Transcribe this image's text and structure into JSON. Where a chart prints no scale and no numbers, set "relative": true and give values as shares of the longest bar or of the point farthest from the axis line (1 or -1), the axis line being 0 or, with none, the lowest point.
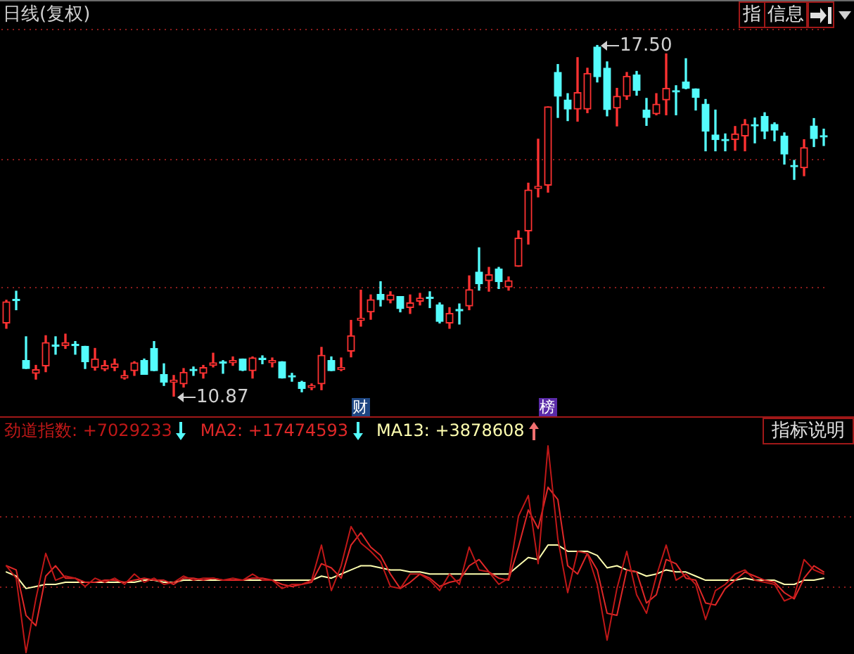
{
  "chart_data": [
    {
      "type": "candlestick",
      "title": "日线(复权)",
      "categories": [
        null,
        null,
        null,
        null,
        null,
        null,
        null,
        null,
        null,
        null,
        null,
        null,
        null,
        null,
        null,
        null,
        null,
        null,
        null,
        null,
        null,
        null,
        null,
        null,
        null,
        null,
        null,
        null,
        null,
        null,
        null,
        null,
        null,
        null,
        null,
        null,
        null,
        null,
        null,
        null,
        null,
        null,
        null,
        null,
        null,
        null,
        null,
        null,
        null,
        null,
        null,
        null,
        null,
        null,
        null,
        null,
        null,
        null,
        null,
        null,
        null,
        null,
        null,
        null,
        null,
        null,
        null,
        null,
        null,
        null,
        null,
        null,
        null,
        null,
        null,
        null,
        null,
        null,
        null,
        null,
        null,
        null,
        null,
        null
      ],
      "ohlc": [
        [
          12.26,
          12.69,
          12.16,
          12.66
        ],
        [
          12.7,
          12.86,
          12.51,
          12.68
        ],
        [
          11.55,
          12.0,
          11.4,
          11.4
        ],
        [
          11.31,
          11.46,
          11.2,
          11.38
        ],
        [
          11.45,
          12.02,
          11.34,
          11.89
        ],
        [
          11.83,
          12.0,
          11.67,
          11.82
        ],
        [
          11.83,
          12.05,
          11.78,
          11.89
        ],
        [
          11.84,
          11.91,
          11.67,
          11.83
        ],
        [
          11.82,
          11.82,
          11.4,
          11.53
        ],
        [
          11.42,
          11.78,
          11.37,
          11.58
        ],
        [
          11.39,
          11.55,
          11.36,
          11.46
        ],
        [
          11.42,
          11.58,
          11.36,
          11.49
        ],
        [
          11.22,
          11.36,
          11.2,
          11.27
        ],
        [
          11.36,
          11.53,
          11.27,
          11.51
        ],
        [
          11.55,
          11.58,
          11.29,
          11.29
        ],
        [
          11.78,
          11.91,
          11.36,
          11.36
        ],
        [
          11.29,
          11.49,
          11.08,
          11.14
        ],
        [
          11.14,
          11.27,
          10.87,
          11.18
        ],
        [
          11.11,
          11.4,
          11.05,
          11.33
        ],
        [
          11.37,
          11.43,
          11.27,
          11.36
        ],
        [
          11.31,
          11.46,
          11.22,
          11.42
        ],
        [
          11.46,
          11.69,
          11.43,
          11.51
        ],
        [
          11.51,
          11.55,
          11.31,
          11.5
        ],
        [
          11.51,
          11.62,
          11.46,
          11.55
        ],
        [
          11.58,
          11.58,
          11.36,
          11.37
        ],
        [
          11.36,
          11.62,
          11.22,
          11.6
        ],
        [
          11.58,
          11.64,
          11.49,
          11.57
        ],
        [
          11.51,
          11.6,
          11.43,
          11.55
        ],
        [
          11.53,
          11.53,
          11.22,
          11.22
        ],
        [
          11.25,
          11.31,
          11.16,
          11.24
        ],
        [
          11.14,
          11.16,
          10.96,
          11.02
        ],
        [
          11.04,
          11.11,
          11.0,
          11.08
        ],
        [
          11.11,
          11.8,
          11.0,
          11.65
        ],
        [
          11.55,
          11.62,
          11.36,
          11.36
        ],
        [
          11.38,
          11.6,
          11.36,
          11.42
        ],
        [
          11.73,
          12.31,
          11.62,
          12.02
        ],
        [
          12.31,
          12.88,
          12.2,
          12.35
        ],
        [
          12.47,
          12.79,
          12.33,
          12.7
        ],
        [
          12.8,
          13.04,
          12.58,
          12.7
        ],
        [
          12.69,
          12.85,
          12.64,
          12.79
        ],
        [
          12.76,
          12.76,
          12.47,
          12.53
        ],
        [
          12.55,
          12.79,
          12.44,
          12.64
        ],
        [
          12.67,
          12.82,
          12.6,
          12.73
        ],
        [
          12.74,
          12.85,
          12.55,
          12.72
        ],
        [
          12.6,
          12.64,
          12.26,
          12.29
        ],
        [
          12.26,
          12.55,
          12.16,
          12.44
        ],
        [
          12.5,
          12.62,
          12.24,
          12.49
        ],
        [
          12.58,
          13.15,
          12.51,
          12.89
        ],
        [
          13.22,
          13.68,
          12.88,
          13.0
        ],
        [
          13.06,
          13.31,
          12.86,
          13.17
        ],
        [
          13.28,
          13.31,
          12.91,
          13.04
        ],
        [
          12.94,
          13.13,
          12.88,
          13.06
        ],
        [
          13.33,
          14.0,
          13.33,
          13.86
        ],
        [
          14.0,
          14.9,
          13.75,
          14.77
        ],
        [
          14.8,
          15.73,
          14.64,
          14.84
        ],
        [
          14.86,
          16.34,
          14.73,
          16.34
        ],
        [
          16.99,
          17.14,
          16.14,
          16.54
        ],
        [
          16.47,
          16.59,
          16.08,
          16.3
        ],
        [
          16.3,
          17.27,
          16.07,
          16.61
        ],
        [
          16.3,
          17.07,
          16.23,
          16.97
        ],
        [
          17.47,
          17.5,
          16.81,
          16.91
        ],
        [
          17.07,
          17.19,
          16.17,
          16.29
        ],
        [
          16.32,
          16.69,
          15.98,
          16.54
        ],
        [
          16.54,
          16.99,
          16.48,
          16.92
        ],
        [
          16.94,
          17.01,
          16.56,
          16.65
        ],
        [
          16.28,
          16.5,
          15.99,
          16.14
        ],
        [
          16.21,
          16.59,
          16.19,
          16.39
        ],
        [
          16.47,
          17.34,
          16.19,
          16.69
        ],
        [
          16.64,
          16.74,
          16.19,
          16.62
        ],
        [
          16.81,
          17.25,
          16.68,
          16.69
        ],
        [
          16.68,
          16.68,
          16.28,
          16.52
        ],
        [
          16.39,
          16.48,
          15.51,
          15.88
        ],
        [
          15.81,
          16.28,
          15.51,
          15.72
        ],
        [
          15.71,
          15.83,
          15.51,
          15.7
        ],
        [
          15.72,
          15.97,
          15.52,
          15.83
        ],
        [
          15.79,
          16.1,
          15.51,
          16.01
        ],
        [
          15.99,
          16.13,
          15.66,
          15.98
        ],
        [
          16.16,
          16.23,
          15.74,
          15.88
        ],
        [
          16.01,
          16.04,
          15.7,
          15.9
        ],
        [
          15.79,
          15.85,
          15.26,
          15.45
        ],
        [
          15.22,
          15.33,
          14.97,
          15.21
        ],
        [
          15.19,
          15.72,
          15.04,
          15.57
        ],
        [
          15.98,
          16.12,
          15.59,
          15.74
        ],
        [
          15.78,
          15.92,
          15.61,
          15.77
        ]
      ],
      "colors": [
        "#ff3232",
        "#54fcfc",
        "#54fcfc",
        "#ff3232",
        "#ff3232",
        "#54fcfc",
        "#ff3232",
        "#54fcfc",
        "#54fcfc",
        "#ff3232",
        "#ff3232",
        "#ff3232",
        "#ff3232",
        "#ff3232",
        "#54fcfc",
        "#54fcfc",
        "#54fcfc",
        "#ff3232",
        "#ff3232",
        "#54fcfc",
        "#ff3232",
        "#ff3232",
        "#54fcfc",
        "#ff3232",
        "#54fcfc",
        "#ff3232",
        "#54fcfc",
        "#ff3232",
        "#54fcfc",
        "#54fcfc",
        "#54fcfc",
        "#ff3232",
        "#ff3232",
        "#54fcfc",
        "#ff3232",
        "#ff3232",
        "#ff3232",
        "#ff3232",
        "#54fcfc",
        "#ff3232",
        "#54fcfc",
        "#ff3232",
        "#ff3232",
        "#54fcfc",
        "#54fcfc",
        "#ff3232",
        "#54fcfc",
        "#ff3232",
        "#54fcfc",
        "#ff3232",
        "#54fcfc",
        "#ff3232",
        "#ff3232",
        "#ff3232",
        "#ff3232",
        "#ff3232",
        "#54fcfc",
        "#54fcfc",
        "#ff3232",
        "#ff3232",
        "#54fcfc",
        "#54fcfc",
        "#ff3232",
        "#ff3232",
        "#54fcfc",
        "#54fcfc",
        "#ff3232",
        "#ff3232",
        "#54fcfc",
        "#54fcfc",
        "#54fcfc",
        "#54fcfc",
        "#54fcfc",
        "#54fcfc",
        "#ff3232",
        "#ff3232",
        "#54fcfc",
        "#54fcfc",
        "#54fcfc",
        "#54fcfc",
        "#54fcfc",
        "#ff3232",
        "#54fcfc",
        "#54fcfc"
      ],
      "yticks": [
        {
          "value": 17.8,
          "label": null
        },
        {
          "value": 15.35,
          "label": null
        },
        {
          "value": 12.93,
          "label": null
        }
      ],
      "grid": "y",
      "tick_labels": false,
      "annotations": [
        "17.50",
        "10.87",
        "财",
        "榜",
        "指",
        "信息"
      ]
    },
    {
      "type": "line",
      "relative": true,
      "legend": "top left",
      "tick_labels": false,
      "categories": [
        null,
        null,
        null,
        null,
        null,
        null,
        null,
        null,
        null,
        null,
        null,
        null,
        null,
        null,
        null,
        null,
        null,
        null,
        null,
        null,
        null,
        null,
        null,
        null,
        null,
        null,
        null,
        null,
        null,
        null,
        null,
        null,
        null,
        null,
        null,
        null,
        null,
        null,
        null,
        null,
        null,
        null,
        null,
        null,
        null,
        null,
        null,
        null,
        null,
        null,
        null,
        null,
        null,
        null,
        null,
        null,
        null,
        null,
        null,
        null,
        null,
        null,
        null,
        null,
        null,
        null,
        null,
        null,
        null,
        null,
        null,
        null,
        null,
        null,
        null,
        null,
        null,
        null,
        null,
        null,
        null,
        null,
        null,
        null
      ],
      "series": [
        {
          "name": "劲道指数: +7029233",
          "color": "#c01818",
          "values": [
            0.42,
            0.36,
            0.0,
            0.26,
            0.48,
            0.35,
            0.37,
            0.36,
            0.32,
            0.36,
            0.34,
            0.36,
            0.33,
            0.38,
            0.34,
            0.36,
            0.33,
            0.34,
            0.37,
            0.35,
            0.36,
            0.36,
            0.35,
            0.36,
            0.35,
            0.38,
            0.35,
            0.35,
            0.31,
            0.33,
            0.33,
            0.35,
            0.52,
            0.3,
            0.42,
            0.61,
            0.53,
            0.49,
            0.44,
            0.32,
            0.31,
            0.38,
            0.38,
            0.35,
            0.3,
            0.38,
            0.33,
            0.51,
            0.4,
            0.39,
            0.33,
            0.36,
            0.66,
            0.76,
            0.43,
            1.0,
            0.55,
            0.29,
            0.49,
            0.48,
            0.33,
            0.06,
            0.31,
            0.49,
            0.28,
            0.19,
            0.37,
            0.52,
            0.35,
            0.38,
            0.33,
            0.16,
            0.3,
            0.33,
            0.38,
            0.4,
            0.35,
            0.34,
            0.33,
            0.25,
            0.27,
            0.45,
            0.4,
            0.38
          ]
        },
        {
          "name": "MA2: +17474593",
          "color": "#e02828",
          "values": [
            0.42,
            0.4,
            0.18,
            0.13,
            0.37,
            0.42,
            0.36,
            0.36,
            0.34,
            0.34,
            0.35,
            0.35,
            0.34,
            0.35,
            0.36,
            0.35,
            0.35,
            0.33,
            0.36,
            0.36,
            0.35,
            0.36,
            0.35,
            0.35,
            0.35,
            0.36,
            0.36,
            0.35,
            0.33,
            0.32,
            0.33,
            0.34,
            0.43,
            0.41,
            0.36,
            0.52,
            0.58,
            0.51,
            0.47,
            0.38,
            0.31,
            0.34,
            0.38,
            0.36,
            0.32,
            0.34,
            0.35,
            0.42,
            0.45,
            0.39,
            0.36,
            0.35,
            0.51,
            0.69,
            0.6,
            0.8,
            0.74,
            0.42,
            0.38,
            0.48,
            0.4,
            0.19,
            0.18,
            0.4,
            0.39,
            0.24,
            0.28,
            0.45,
            0.43,
            0.36,
            0.35,
            0.24,
            0.23,
            0.31,
            0.35,
            0.39,
            0.37,
            0.35,
            0.34,
            0.29,
            0.26,
            0.36,
            0.42,
            0.39
          ]
        },
        {
          "name": "MA13: +3878608",
          "color": "#ffffb0",
          "values": [
            0.39,
            0.37,
            0.31,
            0.32,
            0.33,
            0.33,
            0.34,
            0.34,
            0.34,
            0.34,
            0.34,
            0.34,
            0.34,
            0.34,
            0.35,
            0.35,
            0.34,
            0.34,
            0.35,
            0.35,
            0.35,
            0.35,
            0.35,
            0.35,
            0.35,
            0.35,
            0.35,
            0.35,
            0.35,
            0.35,
            0.35,
            0.35,
            0.37,
            0.36,
            0.38,
            0.4,
            0.42,
            0.42,
            0.41,
            0.4,
            0.4,
            0.39,
            0.39,
            0.38,
            0.38,
            0.38,
            0.38,
            0.38,
            0.38,
            0.38,
            0.38,
            0.38,
            0.42,
            0.46,
            0.45,
            0.52,
            0.52,
            0.49,
            0.49,
            0.49,
            0.47,
            0.41,
            0.42,
            0.4,
            0.39,
            0.37,
            0.38,
            0.4,
            0.39,
            0.39,
            0.37,
            0.35,
            0.35,
            0.35,
            0.35,
            0.36,
            0.35,
            0.35,
            0.35,
            0.33,
            0.33,
            0.35,
            0.35,
            0.36
          ]
        }
      ],
      "ref_lines": [
        {
          "axis": "y",
          "value": 0.66,
          "color": "#8c1c1c",
          "line_style": "dotted"
        },
        {
          "axis": "y",
          "value": 0.32,
          "color": "#8c1c1c",
          "line_style": "dotted"
        }
      ],
      "annotations": [
        "指标说明"
      ]
    }
  ]
}
